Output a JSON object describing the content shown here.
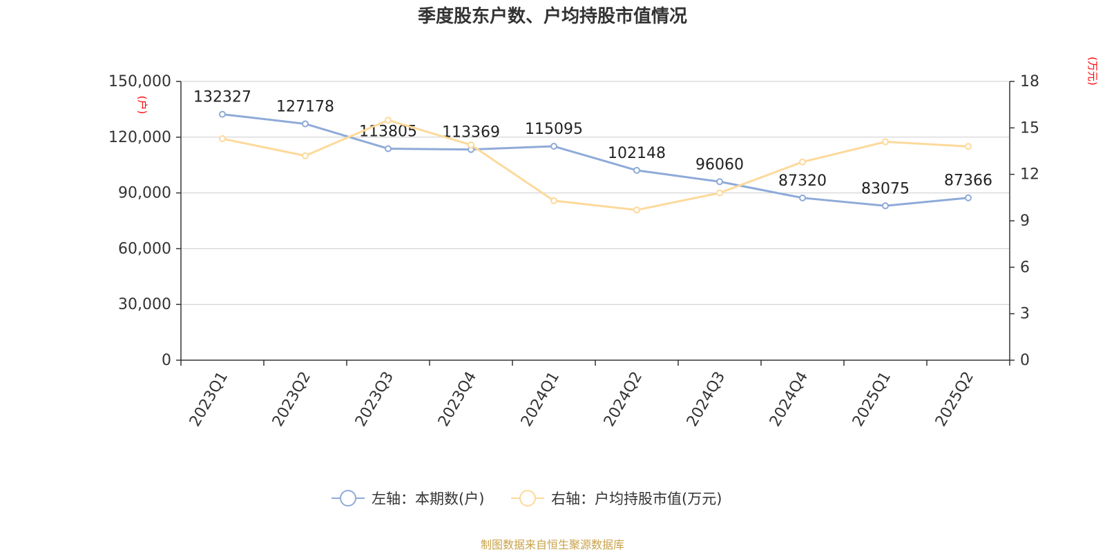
{
  "chart_data": {
    "type": "line",
    "title": "季度股东户数、户均持股市值情况",
    "categories": [
      "2023Q1",
      "2023Q2",
      "2023Q3",
      "2023Q4",
      "2024Q1",
      "2024Q2",
      "2024Q3",
      "2024Q4",
      "2025Q1",
      "2025Q2"
    ],
    "left_axis": {
      "unit": "(户)",
      "ticks": [
        "0",
        "30,000",
        "60,000",
        "90,000",
        "120,000",
        "150,000"
      ],
      "range": [
        0,
        150000
      ]
    },
    "right_axis": {
      "unit": "(万元)",
      "ticks": [
        "0",
        "3",
        "6",
        "9",
        "12",
        "15",
        "18"
      ],
      "range": [
        0,
        18
      ]
    },
    "series": [
      {
        "name": "左轴：本期数(户)",
        "axis": "left",
        "color": "#8eaad8",
        "values": [
          132327,
          127178,
          113805,
          113369,
          115095,
          102148,
          96060,
          87320,
          83075,
          87366
        ],
        "labels": [
          "132327",
          "127178",
          "113805",
          "113369",
          "115095",
          "102148",
          "96060",
          "87320",
          "83075",
          "87366"
        ]
      },
      {
        "name": "右轴：户均持股市值(万元)",
        "axis": "right",
        "color": "#fdd99a",
        "values": [
          14.3,
          13.2,
          15.5,
          13.9,
          10.3,
          9.7,
          10.8,
          12.8,
          14.1,
          13.8
        ]
      }
    ],
    "grid": true,
    "legend_position": "bottom"
  },
  "source": "制图数据来自恒生聚源数据库"
}
